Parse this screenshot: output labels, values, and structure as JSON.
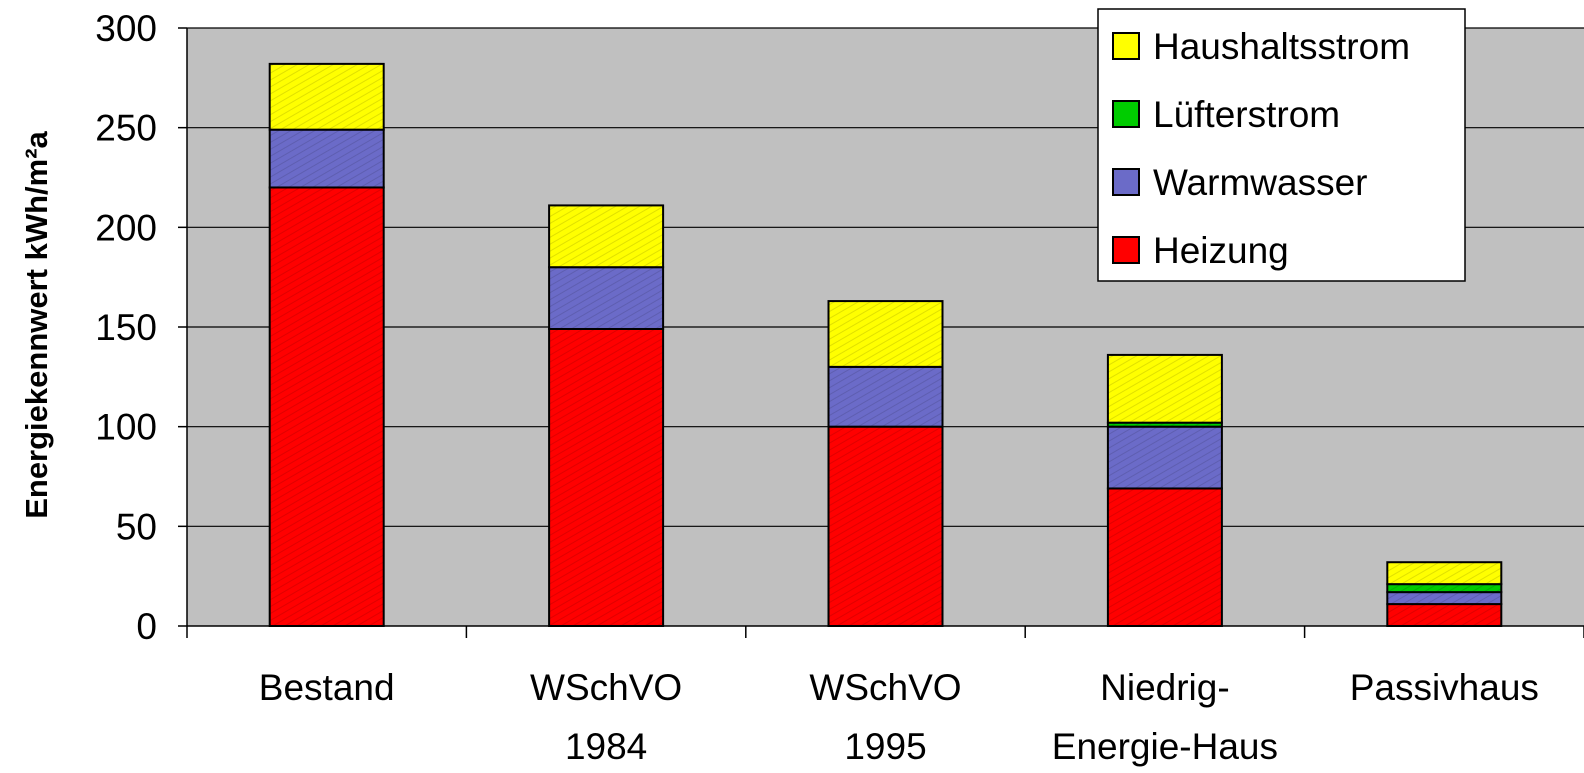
{
  "chart_data": {
    "type": "bar",
    "stacked": true,
    "title": "",
    "xlabel": "",
    "ylabel": "Energiekennwert kWh/m²a",
    "ylim": [
      0,
      300
    ],
    "yticks": [
      0,
      50,
      100,
      150,
      200,
      250,
      300
    ],
    "grid": true,
    "legend_position": "top-right",
    "categories": [
      [
        "Bestand"
      ],
      [
        "WSchVO",
        "1984"
      ],
      [
        "WSchVO",
        "1995"
      ],
      [
        "Niedrig-",
        "Energie-Haus"
      ],
      [
        "Passivhaus"
      ]
    ],
    "series": [
      {
        "name": "Heizung",
        "color": "#ff0000",
        "values": [
          220,
          149,
          100,
          69,
          11
        ]
      },
      {
        "name": "Warmwasser",
        "color": "#6b6bc8",
        "values": [
          29,
          31,
          30,
          31,
          6
        ]
      },
      {
        "name": "Lüfterstrom",
        "color": "#00cc00",
        "values": [
          0,
          0,
          0,
          2,
          4
        ]
      },
      {
        "name": "Haushaltsstrom",
        "color": "#ffff00",
        "values": [
          33,
          31,
          33,
          34,
          11
        ]
      }
    ],
    "legend_order": [
      "Haushaltsstrom",
      "Lüfterstrom",
      "Warmwasser",
      "Heizung"
    ],
    "plot_background": "#c0c0c0"
  }
}
